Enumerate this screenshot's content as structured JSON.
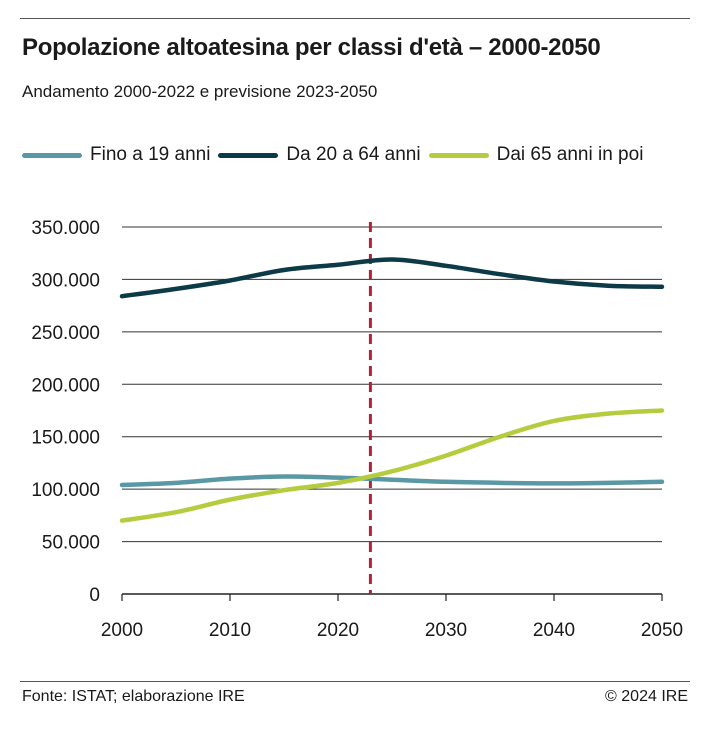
{
  "title": "Popolazione altoatesina per classi d'età – 2000-2050",
  "subtitle": "Andamento 2000-2022 e previsione 2023-2050",
  "footer": {
    "source": "Fonte: ISTAT; elaborazione IRE",
    "copyright": "© 2024 IRE"
  },
  "chart_data": {
    "type": "line",
    "title": "Popolazione altoatesina per classi d'età – 2000-2050",
    "subtitle": "Andamento 2000-2022 e previsione 2023-2050",
    "xlabel": "",
    "ylabel": "",
    "xlim": [
      2000,
      2050
    ],
    "ylim": [
      0,
      350000
    ],
    "x_ticks": [
      2000,
      2010,
      2020,
      2030,
      2040,
      2050
    ],
    "x_tick_labels": [
      "2000",
      "2010",
      "2020",
      "2030",
      "2040",
      "2050"
    ],
    "y_ticks": [
      0,
      50000,
      100000,
      150000,
      200000,
      250000,
      300000,
      350000
    ],
    "y_tick_labels": [
      "0",
      "50.000",
      "100.000",
      "150.000",
      "200.000",
      "250.000",
      "300.000",
      "350.000"
    ],
    "grid": "horizontal",
    "legend_position": "top",
    "reference_line": {
      "x": 2023,
      "style": "dashed",
      "color": "#b22234"
    },
    "x": [
      2000,
      2005,
      2010,
      2015,
      2020,
      2025,
      2030,
      2035,
      2040,
      2045,
      2050
    ],
    "series": [
      {
        "name": "Fino a 19 anni",
        "color": "#5a98a6",
        "values": [
          104000,
          106000,
          110000,
          112000,
          111000,
          109000,
          107000,
          106000,
          105500,
          106000,
          107000
        ]
      },
      {
        "name": "Da 20 a 64 anni",
        "color": "#0d3a47",
        "values": [
          284000,
          291000,
          299000,
          309000,
          314000,
          319000,
          313000,
          305000,
          298000,
          294000,
          293000
        ]
      },
      {
        "name": "Dai 65 anni in poi",
        "color": "#b5cc3e",
        "values": [
          70000,
          78000,
          90000,
          99000,
          106000,
          117000,
          132000,
          150000,
          165000,
          172000,
          175000
        ]
      }
    ]
  }
}
